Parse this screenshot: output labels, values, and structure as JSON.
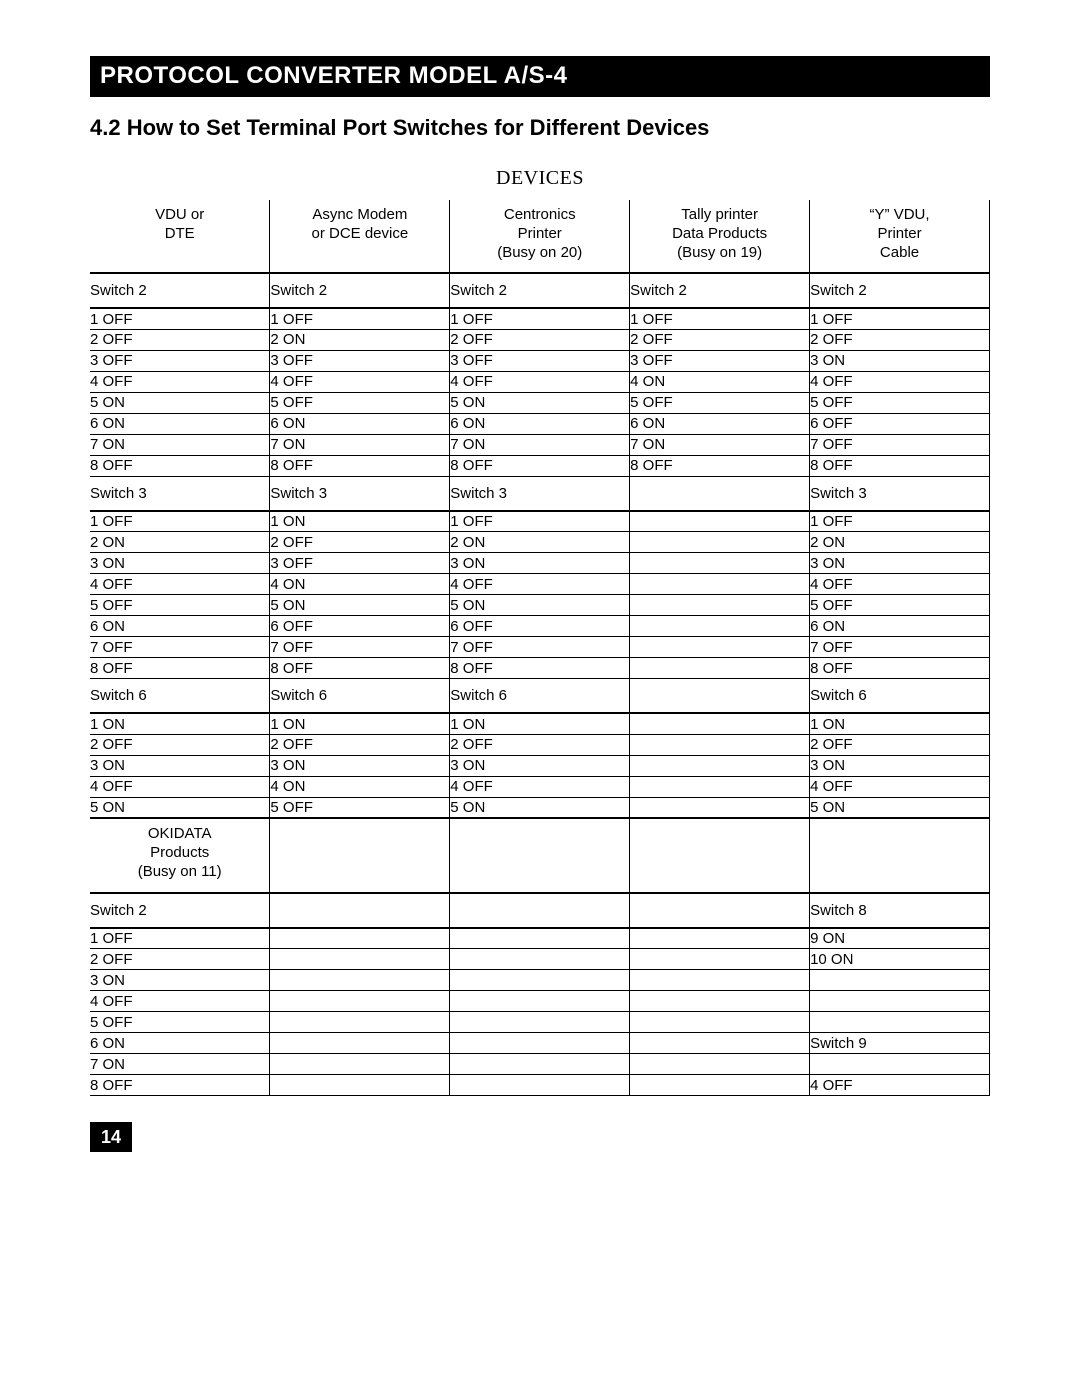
{
  "page_number": "14",
  "title_bar": "PROTOCOL CONVERTER MODEL A/S-4",
  "section_heading": "4.2  How to Set Terminal Port Switches for Different Devices",
  "devices_label": "DEVICES",
  "colors": {
    "title_bg": "#000000",
    "title_fg": "#ffffff",
    "text": "#000000",
    "rule": "#000000",
    "page_bg": "#ffffff"
  },
  "fontsizes": {
    "title_bar": 24,
    "section_heading": 22,
    "devices_label": 20,
    "table": 15,
    "page_number": 18
  },
  "columns": [
    {
      "lines": [
        "VDU or",
        "DTE"
      ]
    },
    {
      "lines": [
        "Async Modem",
        "or DCE device"
      ]
    },
    {
      "lines": [
        "Centronics",
        "Printer",
        "(Busy on 20)"
      ]
    },
    {
      "lines": [
        "Tally printer",
        "Data Products",
        "(Busy on 19)"
      ]
    },
    {
      "lines": [
        "“Y” VDU,",
        "Printer",
        "Cable"
      ]
    }
  ],
  "sections": [
    {
      "labels": [
        "Switch 2",
        "Switch 2",
        "Switch 2",
        "Switch 2",
        "Switch 2"
      ],
      "rows": [
        [
          "1 OFF",
          "1 OFF",
          "1 OFF",
          "1 OFF",
          "1 OFF"
        ],
        [
          "2 OFF",
          "2 ON",
          "2 OFF",
          "2 OFF",
          "2 OFF"
        ],
        [
          "3 OFF",
          "3 OFF",
          "3 OFF",
          "3 OFF",
          "3 ON"
        ],
        [
          "4 OFF",
          "4 OFF",
          "4 OFF",
          "4 ON",
          "4 OFF"
        ],
        [
          "5 ON",
          "5 OFF",
          "5 ON",
          "5 OFF",
          "5 OFF"
        ],
        [
          "6 ON",
          "6 ON",
          "6 ON",
          "6 ON",
          "6 OFF"
        ],
        [
          "7 ON",
          "7 ON",
          "7 ON",
          "7 ON",
          "7 OFF"
        ],
        [
          "8 OFF",
          "8 OFF",
          "8 OFF",
          "8 OFF",
          "8 OFF"
        ]
      ]
    },
    {
      "labels": [
        "Switch 3",
        "Switch 3",
        "Switch 3",
        "",
        "Switch 3"
      ],
      "rows": [
        [
          "1 OFF",
          "1 ON",
          "1 OFF",
          "",
          "1 OFF"
        ],
        [
          "2 ON",
          "2 OFF",
          "2 ON",
          "",
          "2 ON"
        ],
        [
          "3 ON",
          "3 OFF",
          "3 ON",
          "",
          "3 ON"
        ],
        [
          "4 OFF",
          "4 ON",
          "4 OFF",
          "",
          "4 OFF"
        ],
        [
          "5 OFF",
          "5 ON",
          "5 ON",
          "",
          "5 OFF"
        ],
        [
          "6 ON",
          "6 OFF",
          "6 OFF",
          "",
          "6 ON"
        ],
        [
          "7 OFF",
          "7 OFF",
          "7 OFF",
          "",
          "7 OFF"
        ],
        [
          "8 OFF",
          "8 OFF",
          "8 OFF",
          "",
          "8 OFF"
        ]
      ]
    },
    {
      "labels": [
        "Switch 6",
        "Switch 6",
        "Switch 6",
        "",
        "Switch 6"
      ],
      "rows": [
        [
          "1 ON",
          "1 ON",
          "1 ON",
          "",
          "1 ON"
        ],
        [
          "2 OFF",
          "2 OFF",
          "2 OFF",
          "",
          "2 OFF"
        ],
        [
          "3 ON",
          "3 ON",
          "3 ON",
          "",
          "3 ON"
        ],
        [
          "4 OFF",
          "4 ON",
          "4 OFF",
          "",
          "4 OFF"
        ],
        [
          "5 ON",
          "5 OFF",
          "5 ON",
          "",
          "5 ON"
        ]
      ]
    }
  ],
  "lower_header": {
    "col0_lines": [
      "OKIDATA",
      "Products",
      "(Busy on 11)"
    ]
  },
  "lower_sections": [
    {
      "labels": [
        "Switch 2",
        "",
        "",
        "",
        "Switch 8"
      ],
      "rows": [
        [
          "1 OFF",
          "",
          "",
          "",
          "9 ON"
        ],
        [
          "2 OFF",
          "",
          "",
          "",
          "10 ON"
        ],
        [
          "3 ON",
          "",
          "",
          "",
          ""
        ],
        [
          "4 OFF",
          "",
          "",
          "",
          ""
        ],
        [
          "5 OFF",
          "",
          "",
          "",
          ""
        ],
        [
          "6 ON",
          "",
          "",
          "",
          "Switch 9"
        ],
        [
          "7 ON",
          "",
          "",
          "",
          ""
        ],
        [
          "8 OFF",
          "",
          "",
          "",
          "4 OFF"
        ]
      ]
    }
  ]
}
